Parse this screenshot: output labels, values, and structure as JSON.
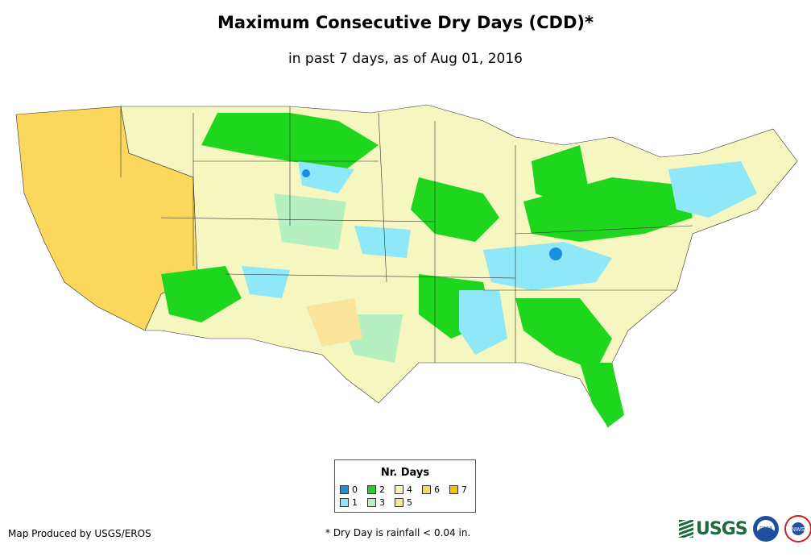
{
  "title": "Maximum Consecutive Dry Days (CDD)*",
  "subtitle": "in past 7 days, as of Aug 01, 2016",
  "legend": {
    "title": "Nr. Days",
    "items": [
      {
        "label": "0",
        "color": "#1a8fe0"
      },
      {
        "label": "1",
        "color": "#8ee8f8"
      },
      {
        "label": "2",
        "color": "#1fd61f"
      },
      {
        "label": "3",
        "color": "#b6f0c0"
      },
      {
        "label": "4",
        "color": "#f6f6c0"
      },
      {
        "label": "5",
        "color": "#fae39a"
      },
      {
        "label": "6",
        "color": "#fbd75c"
      },
      {
        "label": "7",
        "color": "#f6c200"
      }
    ]
  },
  "credit": "Map Produced by USGS/EROS",
  "footnote": "* Dry Day is rainfall < 0.04 in.",
  "logos": {
    "usgs": "USGS",
    "noaa": "noaa",
    "nws": "NWS"
  }
}
